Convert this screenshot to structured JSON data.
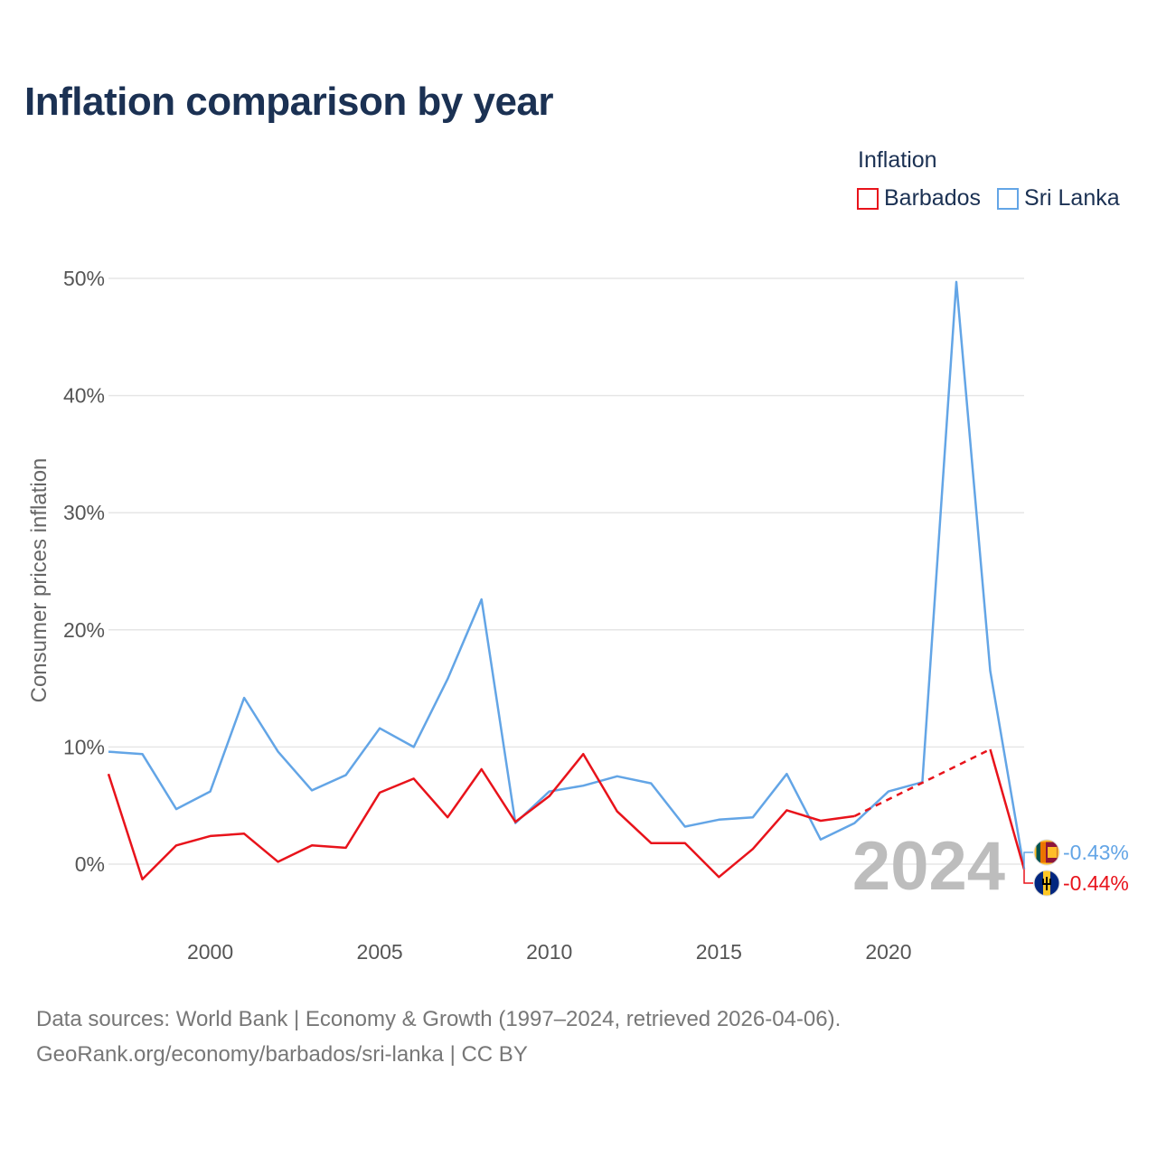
{
  "chart_data": {
    "type": "line",
    "title": "Inflation comparison by year",
    "legend_title": "Inflation",
    "ylabel": "Consumer prices inflation",
    "xlabel": "",
    "x": [
      1997,
      1998,
      1999,
      2000,
      2001,
      2002,
      2003,
      2004,
      2005,
      2006,
      2007,
      2008,
      2009,
      2010,
      2011,
      2012,
      2013,
      2014,
      2015,
      2016,
      2017,
      2018,
      2019,
      2020,
      2021,
      2022,
      2023,
      2024
    ],
    "xlim": [
      1997,
      2024
    ],
    "ylim": [
      -4,
      52
    ],
    "x_ticks": [
      2000,
      2005,
      2010,
      2015,
      2020
    ],
    "y_ticks": [
      0,
      10,
      20,
      30,
      40,
      50
    ],
    "y_tick_labels": [
      "0%",
      "10%",
      "20%",
      "30%",
      "40%",
      "50%"
    ],
    "x_tick_labels": [
      "2000",
      "2005",
      "2010",
      "2015",
      "2020"
    ],
    "grid": true,
    "legend_position": "top-right",
    "highlight_year": "2024",
    "series": [
      {
        "name": "Barbados",
        "color": "#e8131b",
        "values": [
          7.7,
          -1.3,
          1.6,
          2.4,
          2.6,
          0.2,
          1.6,
          1.4,
          6.1,
          7.3,
          4.0,
          8.1,
          3.6,
          5.8,
          9.4,
          4.5,
          1.8,
          1.8,
          -1.1,
          1.3,
          4.6,
          3.7,
          4.1,
          null,
          null,
          null,
          9.8,
          -0.44
        ],
        "gap_segment": [
          2019,
          2023
        ],
        "end_label": "-0.44%",
        "flag_icon": "barbados-flag-icon"
      },
      {
        "name": "Sri Lanka",
        "color": "#63a5e6",
        "values": [
          9.6,
          9.4,
          4.7,
          6.2,
          14.2,
          9.6,
          6.3,
          7.6,
          11.6,
          10.0,
          15.8,
          22.6,
          3.5,
          6.2,
          6.7,
          7.5,
          6.9,
          3.2,
          3.8,
          4.0,
          7.7,
          2.1,
          3.5,
          6.2,
          7.0,
          49.7,
          16.5,
          -0.43
        ],
        "end_label": "-0.43%",
        "flag_icon": "sri-lanka-flag-icon"
      }
    ]
  },
  "footer": {
    "line1": "Data sources: World Bank | Economy & Growth (1997–2024, retrieved 2026-04-06).",
    "line2": "GeoRank.org/economy/barbados/sri-lanka | CC BY"
  }
}
